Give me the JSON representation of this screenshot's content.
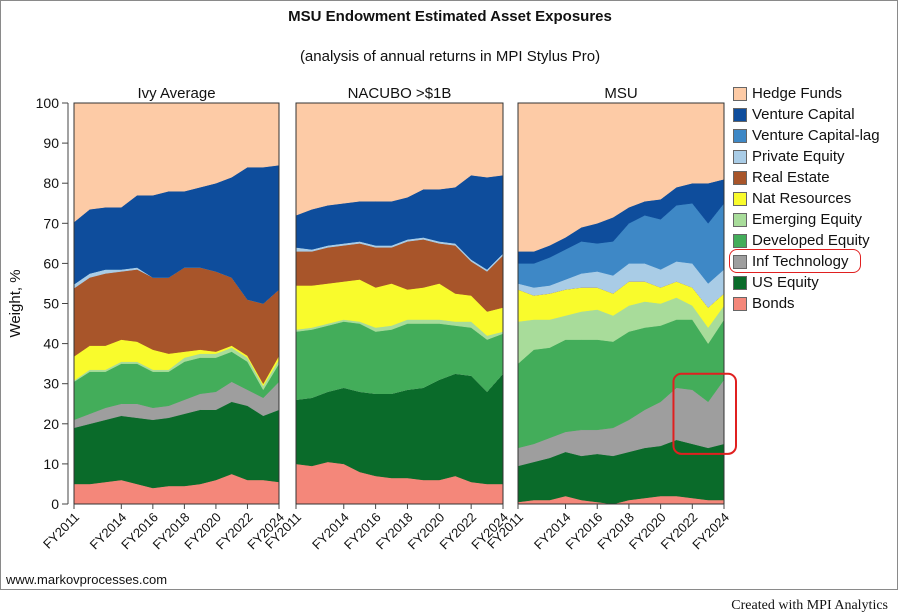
{
  "header": {
    "title": "MSU Endowment Estimated Asset Exposures",
    "subtitle": "(analysis of annual returns in MPI Stylus Pro)"
  },
  "footer": {
    "website": "www.markovprocesses.com",
    "credit": "Created with MPI Analytics"
  },
  "chart_data": {
    "type": "area",
    "stacked": true,
    "ylabel": "Weight, %",
    "ylim": [
      0,
      100
    ],
    "yticks": [
      0,
      10,
      20,
      30,
      40,
      50,
      60,
      70,
      80,
      90,
      100
    ],
    "x": [
      "FY2011",
      "FY2012",
      "FY2013",
      "FY2014",
      "FY2015",
      "FY2016",
      "FY2017",
      "FY2018",
      "FY2019",
      "FY2020",
      "FY2021",
      "FY2022",
      "FY2023",
      "FY2024"
    ],
    "xtick_labels": [
      "FY2011",
      "FY2014",
      "FY2016",
      "FY2018",
      "FY2020",
      "FY2022",
      "FY2024"
    ],
    "legend_position": "right",
    "colors": {
      "Bonds": "#f4877a",
      "US Equity": "#0a6b2a",
      "Inf Technology": "#9e9e9e",
      "Developed Equity": "#43ad5a",
      "Emerging Equity": "#a8dc9a",
      "Nat Resources": "#f9fb2c",
      "Real Estate": "#a8552a",
      "Private Equity": "#a9cce6",
      "Venture Capital-lag": "#3e88c6",
      "Venture Capital": "#0e4d9c",
      "Hedge Funds": "#fdcba6"
    },
    "legend": [
      "Hedge Funds",
      "Venture Capital",
      "Venture Capital-lag",
      "Private Equity",
      "Real Estate",
      "Nat Resources",
      "Emerging Equity",
      "Developed Equity",
      "Inf Technology",
      "US Equity",
      "Bonds"
    ],
    "highlighted_legend_item": "Inf Technology",
    "panels": [
      {
        "title": "Ivy Average",
        "series": [
          {
            "name": "Bonds",
            "values": [
              5,
              5,
              5.5,
              6,
              5,
              4,
              4.5,
              4.5,
              5,
              6,
              7.5,
              6,
              6,
              5.5
            ]
          },
          {
            "name": "US Equity",
            "values": [
              14,
              15,
              15.5,
              16,
              16.5,
              17,
              17,
              18,
              18.5,
              17.5,
              18,
              18.5,
              16,
              18
            ]
          },
          {
            "name": "Inf Technology",
            "values": [
              2,
              2.5,
              3,
              3,
              3.5,
              3,
              3,
              3.5,
              4,
              4.5,
              5,
              4,
              4.5,
              7
            ]
          },
          {
            "name": "Developed Equity",
            "values": [
              9.5,
              10.5,
              9,
              10,
              10,
              9,
              8.5,
              9.5,
              9,
              8.5,
              7.5,
              7,
              2,
              4.5
            ]
          },
          {
            "name": "Emerging Equity",
            "values": [
              0.3,
              0.5,
              0.5,
              0.5,
              0.5,
              0.5,
              0.5,
              1,
              1,
              1,
              1,
              1,
              1,
              1
            ]
          },
          {
            "name": "Nat Resources",
            "values": [
              6,
              6,
              6,
              5.5,
              5,
              5,
              4,
              1.5,
              1,
              0.5,
              0.5,
              0.5,
              0.5,
              1
            ]
          },
          {
            "name": "Real Estate",
            "values": [
              17,
              17,
              18,
              17,
              18,
              18,
              19,
              21,
              20.5,
              20,
              17,
              14,
              20,
              16.5
            ]
          },
          {
            "name": "Private Equity",
            "values": [
              1,
              1,
              1,
              0.5,
              0.5,
              0,
              0,
              0,
              0,
              0,
              0,
              0,
              0,
              0
            ]
          },
          {
            "name": "Venture Capital-lag",
            "values": [
              0,
              0,
              0,
              0,
              0,
              0,
              0,
              0,
              0,
              0,
              0,
              0,
              0,
              0
            ]
          },
          {
            "name": "Venture Capital",
            "values": [
              15.5,
              16,
              15.5,
              15.5,
              18,
              20.5,
              21.5,
              19,
              20,
              22,
              25,
              33,
              34,
              31
            ]
          },
          {
            "name": "Hedge Funds",
            "values": [
              29.7,
              26.5,
              26,
              26,
              23,
              23,
              22,
              22,
              21,
              20,
              18.5,
              16,
              16,
              15.5
            ]
          }
        ]
      },
      {
        "title": "NACUBO >$1B",
        "series": [
          {
            "name": "Bonds",
            "values": [
              10,
              9.5,
              10.5,
              10,
              8,
              7,
              6.5,
              6.5,
              6,
              6,
              7,
              5.5,
              5,
              5
            ]
          },
          {
            "name": "US Equity",
            "values": [
              16,
              17,
              17.5,
              19,
              20,
              20.5,
              21,
              22,
              23,
              25,
              25.5,
              26.5,
              23,
              27.5
            ]
          },
          {
            "name": "Inf Technology",
            "values": [
              0,
              0,
              0,
              0,
              0,
              0,
              0,
              0,
              0,
              0,
              0,
              0,
              0,
              0
            ]
          },
          {
            "name": "Developed Equity",
            "values": [
              17,
              17,
              16.5,
              16.5,
              17,
              15.5,
              16,
              16.5,
              16,
              14,
              12,
              12,
              13,
              10
            ]
          },
          {
            "name": "Emerging Equity",
            "values": [
              0.5,
              0.5,
              0.5,
              0.5,
              0.5,
              1,
              1,
              1,
              1,
              1,
              1,
              1.5,
              1,
              0.5
            ]
          },
          {
            "name": "Nat Resources",
            "values": [
              11,
              10.5,
              10,
              9.5,
              10.5,
              10,
              10.5,
              7.5,
              8,
              9,
              7,
              6.5,
              6,
              6
            ]
          },
          {
            "name": "Real Estate",
            "values": [
              8.5,
              8.5,
              9,
              9,
              9,
              10,
              9,
              12,
              12,
              10,
              12,
              8.5,
              10,
              13
            ]
          },
          {
            "name": "Private Equity",
            "values": [
              1,
              0.5,
              0.5,
              0.5,
              0.5,
              0.5,
              0.5,
              0.5,
              0.5,
              0.5,
              0.5,
              0.5,
              0.5,
              0.5
            ]
          },
          {
            "name": "Venture Capital-lag",
            "values": [
              0,
              0,
              0,
              0,
              0,
              0,
              0,
              0,
              0,
              0,
              0,
              0,
              0,
              0
            ]
          },
          {
            "name": "Venture Capital",
            "values": [
              8,
              10,
              10,
              10,
              10,
              11,
              11,
              10.5,
              12,
              13,
              14,
              21,
              23,
              19.5
            ]
          },
          {
            "name": "Hedge Funds",
            "values": [
              28,
              26.5,
              25.5,
              25,
              24.5,
              24.5,
              24.5,
              23.5,
              21.5,
              21.5,
              21,
              18,
              18.5,
              18
            ]
          }
        ]
      },
      {
        "title": "MSU",
        "series": [
          {
            "name": "Bonds",
            "values": [
              0.5,
              1,
              1,
              2,
              1,
              0.5,
              0,
              1,
              1.5,
              2,
              2,
              1.5,
              1,
              1
            ]
          },
          {
            "name": "US Equity",
            "values": [
              9,
              9.5,
              10.5,
              11,
              11,
              12,
              12,
              12,
              12.5,
              12.5,
              14,
              13.5,
              13,
              14
            ]
          },
          {
            "name": "Inf Technology",
            "values": [
              4.5,
              4.5,
              5,
              5,
              6.5,
              6,
              7,
              8,
              9.5,
              11,
              13,
              13.5,
              11.5,
              16
            ]
          },
          {
            "name": "Developed Equity",
            "values": [
              21,
              23.5,
              22.5,
              23,
              22.5,
              22.5,
              21.5,
              22,
              20.5,
              19,
              17,
              17.5,
              14.5,
              15
            ]
          },
          {
            "name": "Emerging Equity",
            "values": [
              10.5,
              7.5,
              7,
              6,
              7,
              7.5,
              6.5,
              6.5,
              6.5,
              5.5,
              5.5,
              3.5,
              4,
              3.5
            ]
          },
          {
            "name": "Nat Resources",
            "values": [
              8,
              6,
              6.5,
              6.5,
              6,
              5.5,
              5.5,
              6,
              5,
              4,
              4,
              4.5,
              5,
              3
            ]
          },
          {
            "name": "Real Estate",
            "values": [
              0,
              0,
              0,
              0,
              0,
              0,
              0,
              0,
              0,
              0,
              0,
              0,
              0,
              0
            ]
          },
          {
            "name": "Private Equity",
            "values": [
              1.5,
              2,
              2,
              2.5,
              3.5,
              4,
              4.5,
              4.5,
              4.5,
              4.5,
              5,
              6,
              6,
              6
            ]
          },
          {
            "name": "Venture Capital-lag",
            "values": [
              5,
              6,
              7,
              7.5,
              8,
              7,
              8.5,
              10,
              12,
              12.5,
              14,
              15,
              15,
              16.5
            ]
          },
          {
            "name": "Venture Capital",
            "values": [
              3,
              3,
              3,
              3,
              3.5,
              5,
              6,
              4,
              3.5,
              5,
              4.5,
              5,
              10,
              6
            ]
          },
          {
            "name": "Hedge Funds",
            "values": [
              37,
              37,
              35.5,
              33.5,
              31,
              30,
              28.5,
              26,
              24.5,
              24,
              21,
              20,
              20,
              19
            ]
          }
        ],
        "highlight": {
          "series": "Inf Technology",
          "x_range": [
            "FY2021",
            "FY2024"
          ]
        }
      }
    ]
  }
}
